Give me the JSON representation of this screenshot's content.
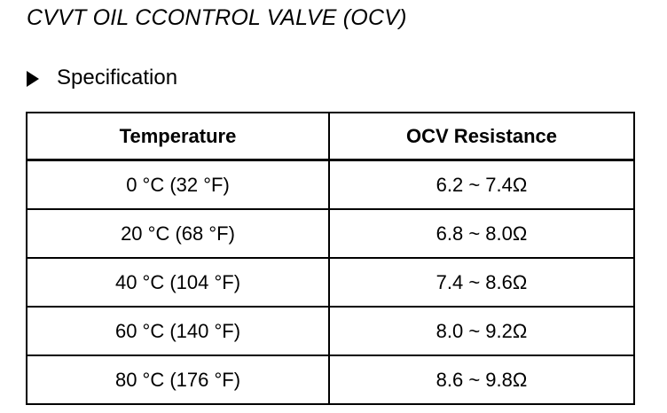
{
  "document": {
    "title": "CVVT OIL CCONTROL VALVE (OCV)",
    "section_heading": "Specification"
  },
  "table": {
    "headers": [
      "Temperature",
      "OCV Resistance"
    ],
    "rows": [
      {
        "temperature": "0 °C (32 °F)",
        "resistance": "6.2 ~ 7.4Ω"
      },
      {
        "temperature": "20 °C (68 °F)",
        "resistance": "6.8 ~ 8.0Ω"
      },
      {
        "temperature": "40 °C (104 °F)",
        "resistance": "7.4 ~ 8.6Ω"
      },
      {
        "temperature": "60 °C (140 °F)",
        "resistance": "8.0 ~ 9.2Ω"
      },
      {
        "temperature": "80 °C (176 °F)",
        "resistance": "8.6 ~ 9.8Ω"
      }
    ]
  },
  "icons": {
    "section_marker": "right-triangle-icon"
  }
}
